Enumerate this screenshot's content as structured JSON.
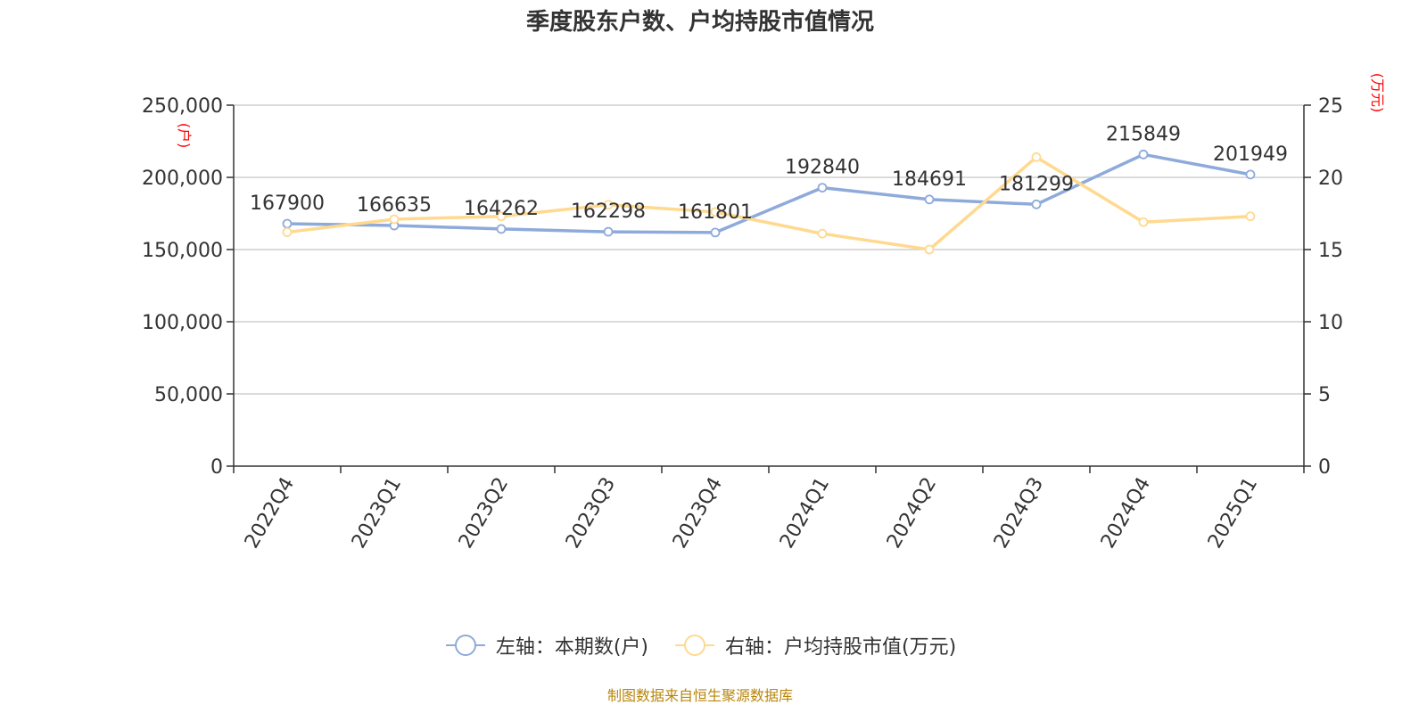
{
  "page": {
    "title": "季度股东户数、户均持股市值情况",
    "source": "制图数据来自恒生聚源数据库"
  },
  "legend": {
    "left_series": "左轴：本期数(户)",
    "right_series": "右轴：户均持股市值(万元)"
  },
  "chart_data": {
    "type": "line",
    "title": "季度股东户数、户均持股市值情况",
    "categories": [
      "2022Q4",
      "2023Q1",
      "2023Q2",
      "2023Q3",
      "2023Q4",
      "2024Q1",
      "2024Q2",
      "2024Q3",
      "2024Q4",
      "2025Q1"
    ],
    "left_axis": {
      "unit_label": "(户)",
      "ylim": [
        0,
        250000
      ],
      "ticks": [
        0,
        50000,
        100000,
        150000,
        200000,
        250000
      ],
      "tick_labels": [
        "0",
        "50,000",
        "100,000",
        "150,000",
        "200,000",
        "250,000"
      ]
    },
    "right_axis": {
      "unit_label": "(万元)",
      "ylim": [
        0,
        25
      ],
      "ticks": [
        0,
        5,
        10,
        15,
        20,
        25
      ],
      "tick_labels": [
        "0",
        "5",
        "10",
        "15",
        "20",
        "25"
      ]
    },
    "series": [
      {
        "name": "左轴：本期数(户)",
        "axis": "left",
        "color": "#8eaadb",
        "values": [
          167900,
          166635,
          164262,
          162298,
          161801,
          192840,
          184691,
          181299,
          215849,
          201949
        ],
        "labels": [
          "167900",
          "166635",
          "164262",
          "162298",
          "161801",
          "192840",
          "184691",
          "181299",
          "215849",
          "201949"
        ]
      },
      {
        "name": "右轴：户均持股市值(万元)",
        "axis": "right",
        "color": "#ffd98f",
        "values": [
          16.2,
          17.1,
          17.3,
          18.1,
          17.6,
          16.1,
          15.0,
          21.4,
          16.9,
          17.3
        ]
      }
    ],
    "grid": true,
    "legend_position": "bottom"
  }
}
